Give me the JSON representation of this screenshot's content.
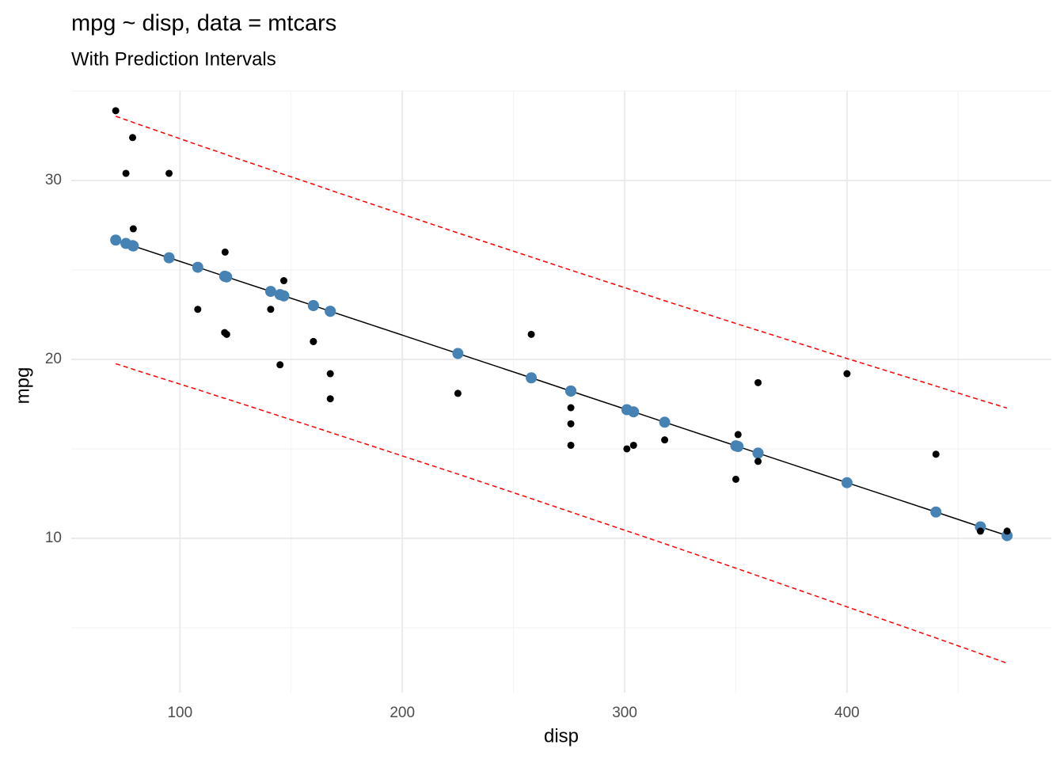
{
  "chart_data": {
    "type": "scatter",
    "title": "mpg ~ disp, data = mtcars",
    "subtitle": "With Prediction Intervals",
    "x_label": "disp",
    "y_label": "mpg",
    "x": [
      71.1,
      75.7,
      78.7,
      79.0,
      95.1,
      108,
      120.1,
      120.3,
      121,
      140.8,
      145,
      146.7,
      160,
      160,
      167.6,
      167.6,
      225,
      258,
      275.8,
      275.8,
      275.8,
      301,
      304,
      318,
      350,
      351,
      360,
      360,
      400,
      440,
      460,
      472
    ],
    "series": [
      {
        "style": "dashed",
        "color": "#ff0000",
        "values": [
          19.76,
          19.58,
          19.46,
          19.44,
          18.81,
          18.31,
          17.82,
          17.82,
          17.79,
          17.0,
          16.83,
          16.76,
          16.23,
          16.23,
          15.92,
          15.92,
          13.59,
          12.22,
          11.47,
          11.47,
          11.47,
          10.41,
          10.29,
          9.7,
          8.33,
          8.29,
          7.9,
          7.9,
          6.17,
          4.43,
          3.55,
          3.02
        ]
      },
      {
        "style": "dashed",
        "color": "#ff0000",
        "values": [
          33.59,
          33.39,
          33.26,
          33.24,
          32.55,
          31.99,
          31.48,
          31.46,
          31.43,
          30.6,
          30.41,
          30.34,
          29.79,
          29.79,
          29.46,
          29.46,
          27.07,
          25.72,
          24.99,
          24.99,
          24.99,
          23.97,
          23.85,
          23.28,
          22.01,
          21.97,
          21.62,
          21.62,
          20.05,
          18.51,
          17.73,
          17.28
        ]
      },
      {
        "style": "line+points",
        "color": "#4682b4",
        "line_color": "#000000",
        "values": [
          26.67,
          26.48,
          26.36,
          26.34,
          25.68,
          25.15,
          24.65,
          24.64,
          24.61,
          23.8,
          23.62,
          23.55,
          23.01,
          23.01,
          22.69,
          22.69,
          20.33,
          18.97,
          18.23,
          18.23,
          18.23,
          17.19,
          17.07,
          16.49,
          15.17,
          15.13,
          14.76,
          14.76,
          13.11,
          11.47,
          10.64,
          10.15
        ]
      },
      {
        "style": "points",
        "color": "#000000",
        "values": [
          33.9,
          30.4,
          32.4,
          27.3,
          30.4,
          22.8,
          21.5,
          26.0,
          21.4,
          22.8,
          19.7,
          24.4,
          21.0,
          21.0,
          19.2,
          17.8,
          18.1,
          21.4,
          16.4,
          17.3,
          15.2,
          15.0,
          15.2,
          15.5,
          13.3,
          15.8,
          18.7,
          14.3,
          19.2,
          14.7,
          10.4,
          10.4
        ]
      }
    ],
    "xlim": [
      51.1,
      491.9
    ],
    "ylim": [
      1.37,
      35.0
    ],
    "xticks": [
      100,
      200,
      300,
      400
    ],
    "yticks": [
      10,
      20,
      30
    ],
    "x_minor_grid": [
      150,
      250,
      350,
      450
    ],
    "y_minor_grid": [
      5,
      15,
      25,
      35
    ],
    "grid": true
  }
}
